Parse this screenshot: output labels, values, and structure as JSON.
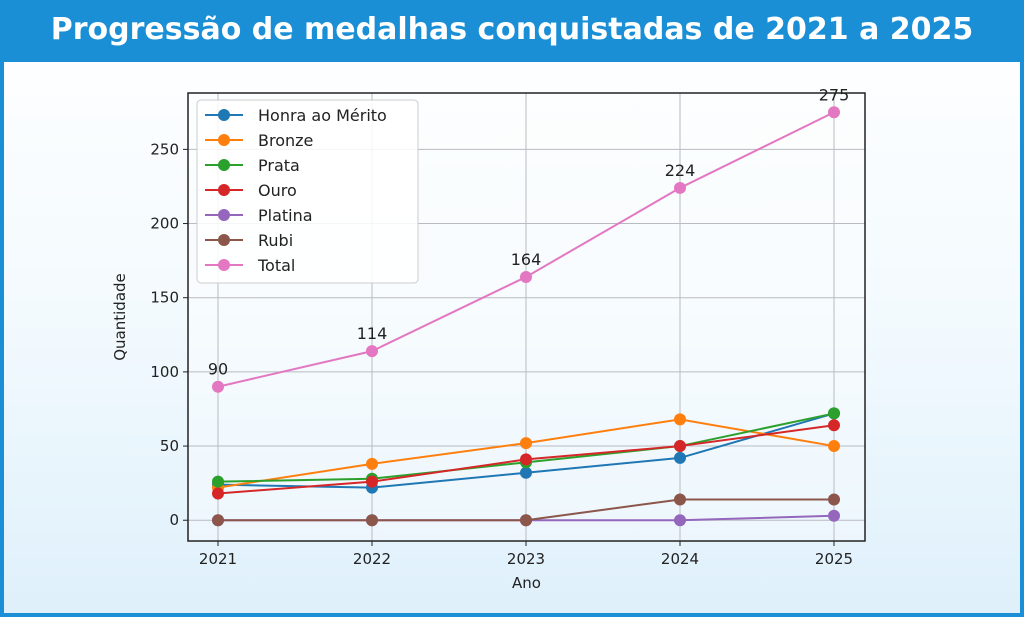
{
  "title": "Progressão de medalhas conquistadas de 2021 a 2025",
  "chart_data": {
    "type": "line",
    "title": "Progressão de medalhas conquistadas de 2021 a 2025",
    "xlabel": "Ano",
    "ylabel": "Quantidade",
    "x": [
      2021,
      2022,
      2023,
      2024,
      2025
    ],
    "xticks": [
      "2021",
      "2022",
      "2023",
      "2024",
      "2025"
    ],
    "yticks": [
      0,
      50,
      100,
      150,
      200,
      250
    ],
    "ylim": [
      -14,
      288
    ],
    "grid": true,
    "legend": "top-left",
    "series": [
      {
        "name": "Honra ao Mérito",
        "color": "#1f77b4",
        "values": [
          24,
          22,
          32,
          42,
          72
        ]
      },
      {
        "name": "Bronze",
        "color": "#ff7f0e",
        "values": [
          22,
          38,
          52,
          68,
          50
        ]
      },
      {
        "name": "Prata",
        "color": "#2ca02c",
        "values": [
          26,
          28,
          39,
          50,
          72
        ]
      },
      {
        "name": "Ouro",
        "color": "#d62728",
        "values": [
          18,
          26,
          41,
          50,
          64
        ]
      },
      {
        "name": "Platina",
        "color": "#9467bd",
        "values": [
          0,
          0,
          0,
          0,
          3
        ]
      },
      {
        "name": "Rubi",
        "color": "#8c564b",
        "values": [
          0,
          0,
          0,
          14,
          14
        ]
      },
      {
        "name": "Total",
        "color": "#e377c2",
        "values": [
          90,
          114,
          164,
          224,
          275
        ],
        "data_labels": [
          "90",
          "114",
          "164",
          "224",
          "275"
        ]
      }
    ]
  }
}
